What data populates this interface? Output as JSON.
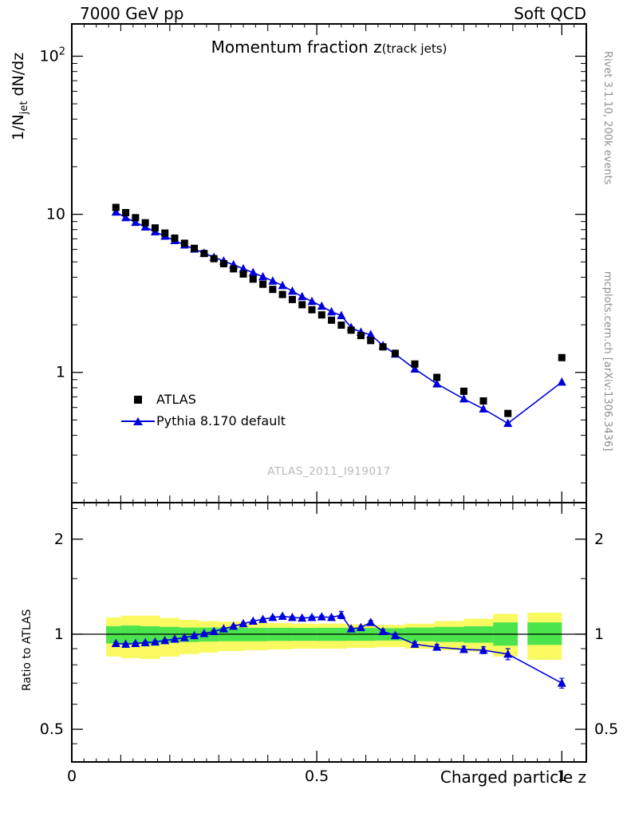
{
  "header": {
    "left": "7000 GeV pp",
    "right": "Soft QCD"
  },
  "side_notes": {
    "top": "Rivet 3.1.10,  200k events",
    "bottom": "mcplots.cern.ch [arXiv:1306.3436]"
  },
  "watermark": "ATLAS_2011_I919017",
  "colors": {
    "pythia_blue": "#0000dd",
    "atlas_black": "#000000",
    "band_yellow": "#f9f960",
    "band_green": "#4ce44c",
    "frame": "#000000",
    "gray_text": "#8f8f8f",
    "watermark_gray": "#b9b9b9"
  },
  "chart_data": {
    "type": "scatter",
    "title_main": "Momentum fraction z",
    "title_paren": "(track jets)",
    "xlabel": "Charged particle z",
    "ylabel_parts": {
      "pre": "1/N",
      "sub": "jet",
      "post": " dN/dz"
    },
    "ratio_ylabel": "Ratio to ATLAS",
    "x_range": [
      0,
      1.05
    ],
    "top_axis": {
      "scale": "log",
      "range": [
        0.15,
        160
      ],
      "ticks": [
        {
          "v": 1,
          "label": "1"
        },
        {
          "v": 10,
          "label": "10"
        },
        {
          "v": 100,
          "label": "10",
          "sup": "2"
        }
      ]
    },
    "ratio_axis": {
      "scale": "log",
      "range": [
        0.394,
        2.61
      ],
      "ticks": [
        {
          "v": 0.5,
          "label": "0.5"
        },
        {
          "v": 1,
          "label": "1"
        },
        {
          "v": 2,
          "label": "2"
        }
      ],
      "minor": [
        0.45,
        0.6,
        0.7,
        0.8,
        0.9,
        1.5,
        2.5
      ]
    },
    "x_axis": {
      "ticks": [
        {
          "v": 0,
          "label": "0"
        },
        {
          "v": 0.5,
          "label": "0.5"
        },
        {
          "v": 1,
          "label": "1"
        }
      ],
      "medium_step": 0.1,
      "minor_step": 0.025
    },
    "x": [
      0.09,
      0.11,
      0.13,
      0.15,
      0.17,
      0.19,
      0.21,
      0.23,
      0.25,
      0.27,
      0.29,
      0.31,
      0.33,
      0.35,
      0.37,
      0.39,
      0.41,
      0.43,
      0.45,
      0.47,
      0.49,
      0.51,
      0.53,
      0.55,
      0.57,
      0.59,
      0.61,
      0.635,
      0.66,
      0.7,
      0.745,
      0.8,
      0.84,
      0.89,
      1.0
    ],
    "series": [
      {
        "name": "ATLAS",
        "marker": "square",
        "color": "#000000",
        "values": [
          11.05,
          10.25,
          9.52,
          8.84,
          8.2,
          7.61,
          7.07,
          6.56,
          6.09,
          5.65,
          5.24,
          4.87,
          4.52,
          4.19,
          3.89,
          3.61,
          3.35,
          3.11,
          2.89,
          2.68,
          2.49,
          2.31,
          2.14,
          1.99,
          1.85,
          1.71,
          1.59,
          1.45,
          1.32,
          1.13,
          0.93,
          0.76,
          0.66,
          0.55,
          1.24
        ],
        "frac_err": 0.035
      },
      {
        "name": "Pythia 8.170 default",
        "marker": "triangle",
        "color": "#0000dd",
        "ratio_to_atlas": [
          0.935,
          0.93,
          0.935,
          0.94,
          0.945,
          0.955,
          0.965,
          0.975,
          0.99,
          1.005,
          1.02,
          1.04,
          1.06,
          1.08,
          1.1,
          1.115,
          1.13,
          1.14,
          1.13,
          1.125,
          1.13,
          1.135,
          1.13,
          1.15,
          1.04,
          1.05,
          1.09,
          1.02,
          0.99,
          0.93,
          0.91,
          0.895,
          0.89,
          0.865,
          0.7
        ],
        "ratio_err": [
          0.008,
          0.008,
          0.008,
          0.008,
          0.008,
          0.008,
          0.008,
          0.008,
          0.008,
          0.008,
          0.008,
          0.008,
          0.009,
          0.009,
          0.009,
          0.009,
          0.01,
          0.01,
          0.01,
          0.01,
          0.011,
          0.012,
          0.012,
          0.03,
          0.013,
          0.013,
          0.014,
          0.015,
          0.015,
          0.016,
          0.018,
          0.02,
          0.022,
          0.035,
          0.025
        ]
      }
    ],
    "bands": {
      "yellow": [
        [
          0.07,
          0.1,
          0.85,
          1.13
        ],
        [
          0.1,
          0.14,
          0.84,
          1.145
        ],
        [
          0.14,
          0.18,
          0.835,
          1.145
        ],
        [
          0.18,
          0.22,
          0.85,
          1.125
        ],
        [
          0.22,
          0.26,
          0.865,
          1.11
        ],
        [
          0.26,
          0.3,
          0.875,
          1.1
        ],
        [
          0.3,
          0.35,
          0.885,
          1.095
        ],
        [
          0.35,
          0.4,
          0.89,
          1.09
        ],
        [
          0.4,
          0.45,
          0.895,
          1.085
        ],
        [
          0.45,
          0.5,
          0.9,
          1.08
        ],
        [
          0.5,
          0.56,
          0.9,
          1.08
        ],
        [
          0.56,
          0.62,
          0.905,
          1.075
        ],
        [
          0.62,
          0.68,
          0.91,
          1.07
        ],
        [
          0.68,
          0.74,
          0.9,
          1.08
        ],
        [
          0.74,
          0.8,
          0.89,
          1.1
        ],
        [
          0.8,
          0.86,
          0.88,
          1.12
        ],
        [
          0.86,
          0.91,
          0.85,
          1.16
        ],
        [
          0.93,
          1.0,
          0.83,
          1.17
        ]
      ],
      "green": [
        [
          0.07,
          0.1,
          0.935,
          1.06
        ],
        [
          0.1,
          0.14,
          0.93,
          1.065
        ],
        [
          0.14,
          0.18,
          0.93,
          1.06
        ],
        [
          0.18,
          0.22,
          0.94,
          1.055
        ],
        [
          0.22,
          0.26,
          0.945,
          1.05
        ],
        [
          0.26,
          0.3,
          0.948,
          1.05
        ],
        [
          0.3,
          0.35,
          0.95,
          1.05
        ],
        [
          0.35,
          0.4,
          0.95,
          1.048
        ],
        [
          0.4,
          0.45,
          0.952,
          1.048
        ],
        [
          0.45,
          0.5,
          0.953,
          1.047
        ],
        [
          0.5,
          0.56,
          0.952,
          1.048
        ],
        [
          0.56,
          0.62,
          0.953,
          1.047
        ],
        [
          0.62,
          0.68,
          0.955,
          1.045
        ],
        [
          0.68,
          0.74,
          0.95,
          1.05
        ],
        [
          0.74,
          0.8,
          0.945,
          1.055
        ],
        [
          0.8,
          0.86,
          0.94,
          1.06
        ],
        [
          0.86,
          0.91,
          0.92,
          1.09
        ],
        [
          0.93,
          1.0,
          0.925,
          1.09
        ]
      ]
    }
  }
}
